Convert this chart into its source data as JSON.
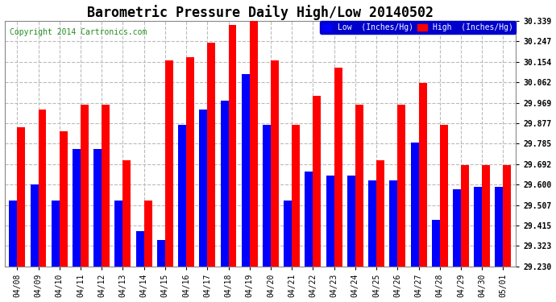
{
  "title": "Barometric Pressure Daily High/Low 20140502",
  "copyright": "Copyright 2014 Cartronics.com",
  "dates": [
    "04/08",
    "04/09",
    "04/10",
    "04/11",
    "04/12",
    "04/13",
    "04/14",
    "04/15",
    "04/16",
    "04/17",
    "04/18",
    "04/19",
    "04/20",
    "04/21",
    "04/22",
    "04/23",
    "04/24",
    "04/25",
    "04/26",
    "04/27",
    "04/28",
    "04/29",
    "04/30",
    "05/01"
  ],
  "low": [
    29.53,
    29.6,
    29.53,
    29.76,
    29.76,
    29.53,
    29.39,
    29.35,
    29.87,
    29.94,
    29.98,
    30.1,
    29.87,
    29.53,
    29.66,
    29.64,
    29.64,
    29.62,
    29.62,
    29.79,
    29.44,
    29.58,
    29.59,
    29.59
  ],
  "high": [
    29.86,
    29.94,
    29.84,
    29.96,
    29.96,
    29.71,
    29.53,
    30.16,
    30.175,
    30.24,
    30.32,
    30.339,
    30.16,
    29.87,
    30.0,
    30.13,
    29.96,
    29.71,
    29.96,
    30.06,
    29.87,
    29.69,
    29.69,
    29.69
  ],
  "low_color": "#0000ff",
  "high_color": "#ff0000",
  "bg_color": "#ffffff",
  "grid_color": "#bbbbbb",
  "ymin": 29.23,
  "ymax": 30.339,
  "yticks": [
    29.23,
    29.323,
    29.415,
    29.507,
    29.6,
    29.692,
    29.785,
    29.877,
    29.969,
    30.062,
    30.154,
    30.247,
    30.339
  ],
  "bar_width": 0.38,
  "title_fontsize": 12,
  "tick_fontsize": 7,
  "copyright_color": "#228B22",
  "copyright_fontsize": 7
}
